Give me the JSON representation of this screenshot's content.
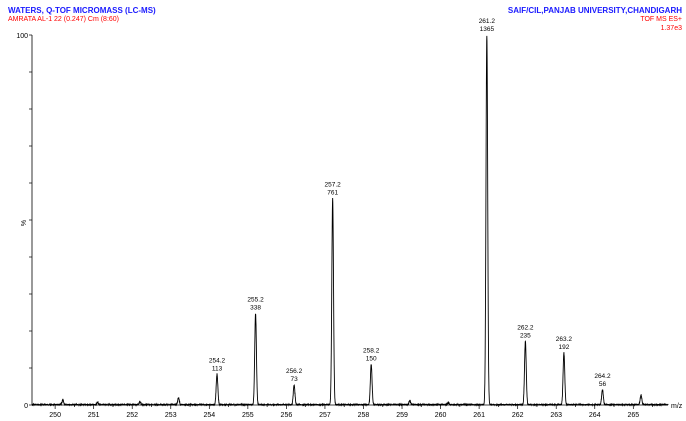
{
  "header": {
    "instrument": "WATERS, Q-TOF MICROMASS (LC-MS)",
    "sample": "AMRATA AL-1 22 (0.247) Cm (8:60)",
    "lab": "SAIF/CIL,PANJAB UNIVERSITY,CHANDIGARH",
    "mode": "TOF MS ES+",
    "scale": "1.37e3",
    "title_color": "#1a1aff",
    "sub_color": "#ff0000"
  },
  "chart_data": {
    "type": "line",
    "title": "WATERS, Q-TOF MICROMASS (LC-MS)",
    "xlabel": "m/z",
    "ylabel": "%",
    "xlim": [
      249.4,
      265.9
    ],
    "ylim": [
      0,
      100
    ],
    "x_ticks": [
      250,
      251,
      252,
      253,
      254,
      255,
      256,
      257,
      258,
      259,
      260,
      261,
      262,
      263,
      264,
      265
    ],
    "y_ticks": [
      0,
      100
    ],
    "base_intensity": 1365,
    "peaks": [
      {
        "mz": 254.2,
        "intensity": 113,
        "mz_label": "254.2",
        "int_label": "113"
      },
      {
        "mz": 255.2,
        "intensity": 338,
        "mz_label": "255.2",
        "int_label": "338"
      },
      {
        "mz": 256.2,
        "intensity": 73,
        "mz_label": "256.2",
        "int_label": "73"
      },
      {
        "mz": 257.2,
        "intensity": 761,
        "mz_label": "257.2",
        "int_label": "761"
      },
      {
        "mz": 258.2,
        "intensity": 150,
        "mz_label": "258.2",
        "int_label": "150"
      },
      {
        "mz": 261.2,
        "intensity": 1365,
        "mz_label": "261.2",
        "int_label": "1365"
      },
      {
        "mz": 262.2,
        "intensity": 235,
        "mz_label": "262.2",
        "int_label": "235"
      },
      {
        "mz": 263.2,
        "intensity": 192,
        "mz_label": "263.2",
        "int_label": "192"
      },
      {
        "mz": 264.2,
        "intensity": 56,
        "mz_label": "264.2",
        "int_label": "56"
      }
    ],
    "minor_peaks": [
      {
        "mz": 250.2,
        "intensity": 18
      },
      {
        "mz": 251.1,
        "intensity": 10
      },
      {
        "mz": 252.2,
        "intensity": 12
      },
      {
        "mz": 253.2,
        "intensity": 26
      },
      {
        "mz": 259.2,
        "intensity": 16
      },
      {
        "mz": 260.2,
        "intensity": 9
      },
      {
        "mz": 265.2,
        "intensity": 36
      }
    ]
  }
}
